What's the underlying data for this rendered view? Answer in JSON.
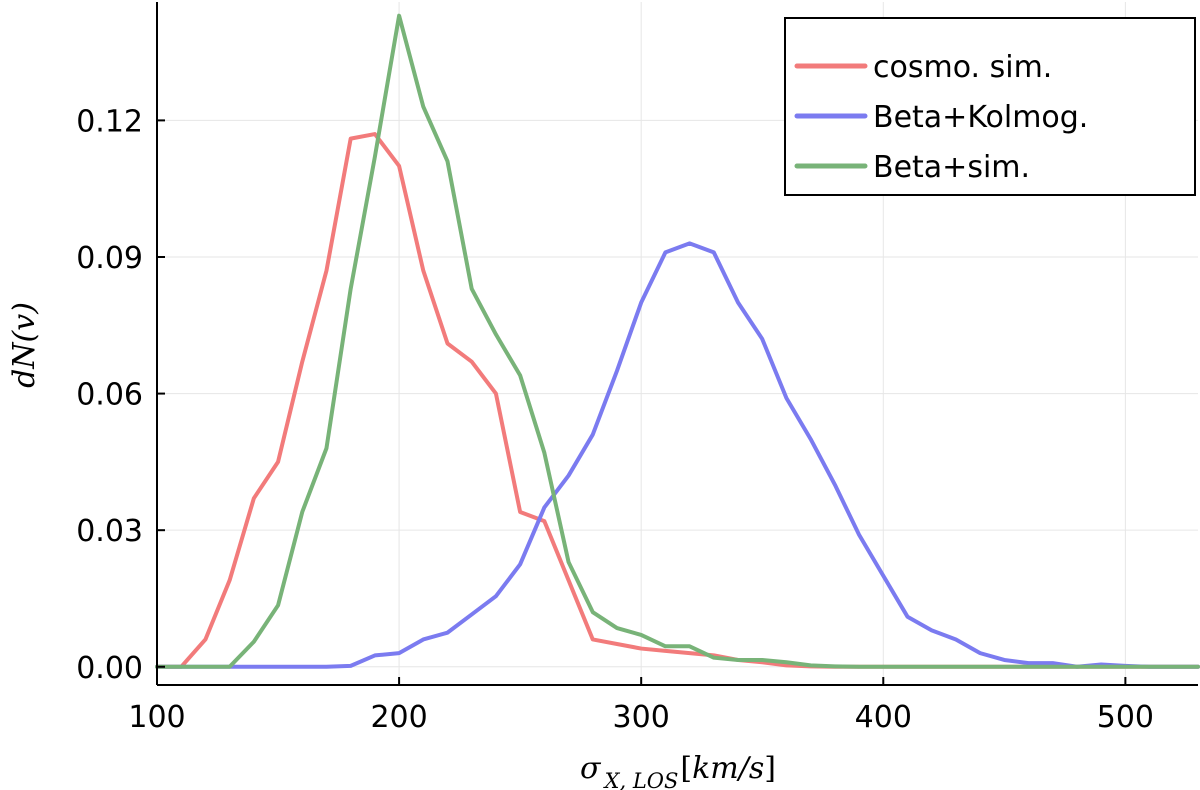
{
  "chart_data": {
    "type": "line",
    "title": "",
    "xlabel": {
      "main": "σ",
      "subscript": "X, LOS",
      "bracket_open": "[",
      "unit": "km/s",
      "bracket_close": "]"
    },
    "ylabel": "dN(v)",
    "xlim": [
      100,
      530
    ],
    "ylim": [
      -0.004,
      0.146
    ],
    "xticks": [
      100,
      200,
      300,
      400,
      500
    ],
    "xtick_labels": [
      "100",
      "200",
      "300",
      "400",
      "500"
    ],
    "yticks": [
      0.0,
      0.03,
      0.06,
      0.09,
      0.12
    ],
    "ytick_labels": [
      "0.00",
      "0.03",
      "0.06",
      "0.09",
      "0.12"
    ],
    "grid": true,
    "legend_position": "top-right",
    "x": [
      100,
      110,
      120,
      130,
      140,
      150,
      160,
      170,
      180,
      190,
      200,
      210,
      220,
      230,
      240,
      250,
      260,
      270,
      280,
      290,
      300,
      310,
      320,
      330,
      340,
      350,
      360,
      370,
      380,
      390,
      400,
      410,
      420,
      430,
      440,
      450,
      460,
      470,
      480,
      490,
      500,
      510,
      520,
      530
    ],
    "series": [
      {
        "name": "cosmo. sim.",
        "color": "#f27b7b",
        "values": [
          0.0,
          0.0,
          0.006,
          0.019,
          0.037,
          0.045,
          0.067,
          0.087,
          0.116,
          0.117,
          0.11,
          0.087,
          0.071,
          0.067,
          0.06,
          0.034,
          0.032,
          0.019,
          0.006,
          0.005,
          0.004,
          0.0035,
          0.003,
          0.0025,
          0.0015,
          0.001,
          0.0003,
          0.0001,
          0.0,
          0.0,
          0.0,
          0.0,
          0.0,
          0.0,
          0.0,
          0.0,
          0.0,
          0.0,
          0.0,
          0.0,
          0.0,
          0.0,
          0.0,
          0.0
        ]
      },
      {
        "name": "Beta+Kolmog.",
        "color": "#7b7bf0",
        "values": [
          0.0,
          0.0,
          0.0,
          0.0,
          0.0,
          0.0,
          0.0,
          0.0,
          0.0002,
          0.0025,
          0.003,
          0.006,
          0.0075,
          0.0115,
          0.0155,
          0.0225,
          0.035,
          0.042,
          0.051,
          0.065,
          0.08,
          0.091,
          0.093,
          0.091,
          0.08,
          0.072,
          0.059,
          0.05,
          0.04,
          0.029,
          0.02,
          0.011,
          0.008,
          0.006,
          0.003,
          0.0015,
          0.0008,
          0.0008,
          0.0,
          0.0005,
          0.0002,
          0.0,
          0.0,
          0.0
        ]
      },
      {
        "name": "Beta+sim.",
        "color": "#78b378",
        "values": [
          0.0,
          0.0,
          0.0,
          0.0,
          0.0055,
          0.0135,
          0.034,
          0.048,
          0.083,
          0.112,
          0.143,
          0.123,
          0.111,
          0.083,
          0.073,
          0.064,
          0.047,
          0.023,
          0.012,
          0.0085,
          0.007,
          0.0045,
          0.0045,
          0.002,
          0.0015,
          0.0015,
          0.001,
          0.0003,
          0.0001,
          0.0,
          0.0,
          0.0,
          0.0,
          0.0,
          0.0,
          0.0,
          0.0,
          0.0,
          0.0,
          0.0,
          0.0,
          0.0,
          0.0,
          0.0
        ]
      }
    ]
  }
}
